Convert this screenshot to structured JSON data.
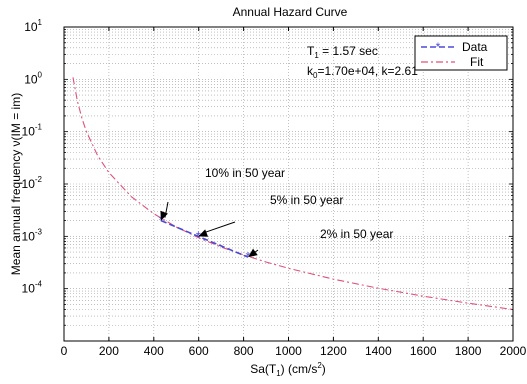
{
  "chart_data": {
    "type": "line",
    "title": "Annual Hazard Curve",
    "xlabel_main": "Sa(T",
    "xlabel_sub": "1",
    "xlabel_tail": ") (cm/s",
    "xlabel_sup": "2",
    "xlabel_end": ")",
    "ylabel": "Mean annual frequency ν(IM = im)",
    "xlim": [
      0,
      2000
    ],
    "ylim": [
      1e-05,
      10
    ],
    "yscale": "log",
    "grid": true,
    "legend_position": "top-right",
    "x_ticks": [
      0,
      200,
      400,
      600,
      800,
      1000,
      1200,
      1400,
      1600,
      1800,
      2000
    ],
    "x_tick_labels": [
      "0",
      "200",
      "400",
      "600",
      "800",
      "1000",
      "1200",
      "1400",
      "1600",
      "1800",
      "2000"
    ],
    "y_tick_exponents": [
      "-4",
      "-3",
      "-2",
      "-1",
      "0",
      "1"
    ],
    "series": [
      {
        "name": "Data",
        "color": "#4b4bd6",
        "style": "dashed-with-star-markers",
        "x": [
          432,
          598,
          820
        ],
        "y": [
          0.002,
          0.001,
          0.0004
        ]
      },
      {
        "name": "Fit",
        "color": "#e0507a",
        "style": "dash-dot",
        "k0": 17000,
        "k": 2.61,
        "x": [
          40,
          60,
          80,
          100,
          150,
          200,
          300,
          400,
          500,
          600,
          700,
          800,
          900,
          1000,
          1200,
          1400,
          1600,
          1800,
          2000
        ],
        "y": [
          1.09,
          0.378,
          0.179,
          0.0999,
          0.0347,
          0.0165,
          0.00573,
          0.0027,
          0.00151,
          0.000938,
          0.000624,
          0.000441,
          0.000323,
          0.000245,
          0.000152,
          0.000102,
          7.19e-05,
          5.28e-05,
          4e-05
        ]
      }
    ],
    "annotation_lines": [
      {
        "main": "T",
        "sub": "1",
        "tail": " = 1.57 sec"
      },
      {
        "main": "k",
        "sub": "0",
        "tail": "=1.70e+04, k=2.61"
      }
    ],
    "arrows": [
      {
        "label": "10% in 50 year",
        "x": 432,
        "y": 0.002
      },
      {
        "label": "5% in 50 year",
        "x": 598,
        "y": 0.001
      },
      {
        "label": "2% in 50 year",
        "x": 820,
        "y": 0.0004
      }
    ]
  }
}
